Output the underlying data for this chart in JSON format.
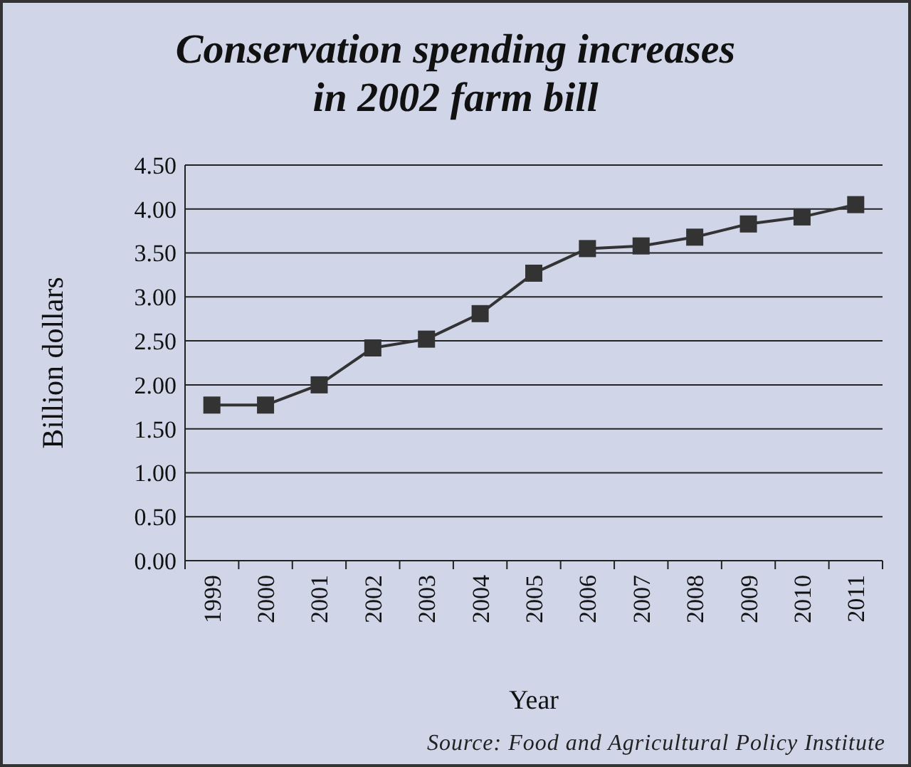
{
  "chart_data": {
    "type": "line",
    "title": "Conservation spending increases in 2002 farm bill",
    "xlabel": "Year",
    "ylabel": "Billion dollars",
    "categories": [
      "1999",
      "2000",
      "2001",
      "2002",
      "2003",
      "2004",
      "2005",
      "2006",
      "2007",
      "2008",
      "2009",
      "2010",
      "2011"
    ],
    "series": [
      {
        "color": "#333333",
        "values": [
          1.77,
          1.77,
          2.0,
          2.42,
          2.52,
          2.81,
          3.27,
          3.55,
          3.58,
          3.68,
          3.83,
          3.91,
          4.05
        ]
      }
    ],
    "ylim": [
      0,
      4.5
    ],
    "yticks": [
      {
        "value": 0,
        "label": "0.00"
      },
      {
        "value": 0.5,
        "label": "0.50"
      },
      {
        "value": 1,
        "label": "1.00"
      },
      {
        "value": 1.5,
        "label": "1.50"
      },
      {
        "value": 2,
        "label": "2.00"
      },
      {
        "value": 2.5,
        "label": "2.50"
      },
      {
        "value": 3,
        "label": "3.00"
      },
      {
        "value": 3.5,
        "label": "3.50"
      },
      {
        "value": 4,
        "label": "4.00"
      },
      {
        "value": 4.5,
        "label": "4.50"
      }
    ],
    "grid": "y",
    "marker": "square",
    "line_style": "solid",
    "annotations": [
      "Source: Food and Agricultural Policy Institute"
    ]
  }
}
